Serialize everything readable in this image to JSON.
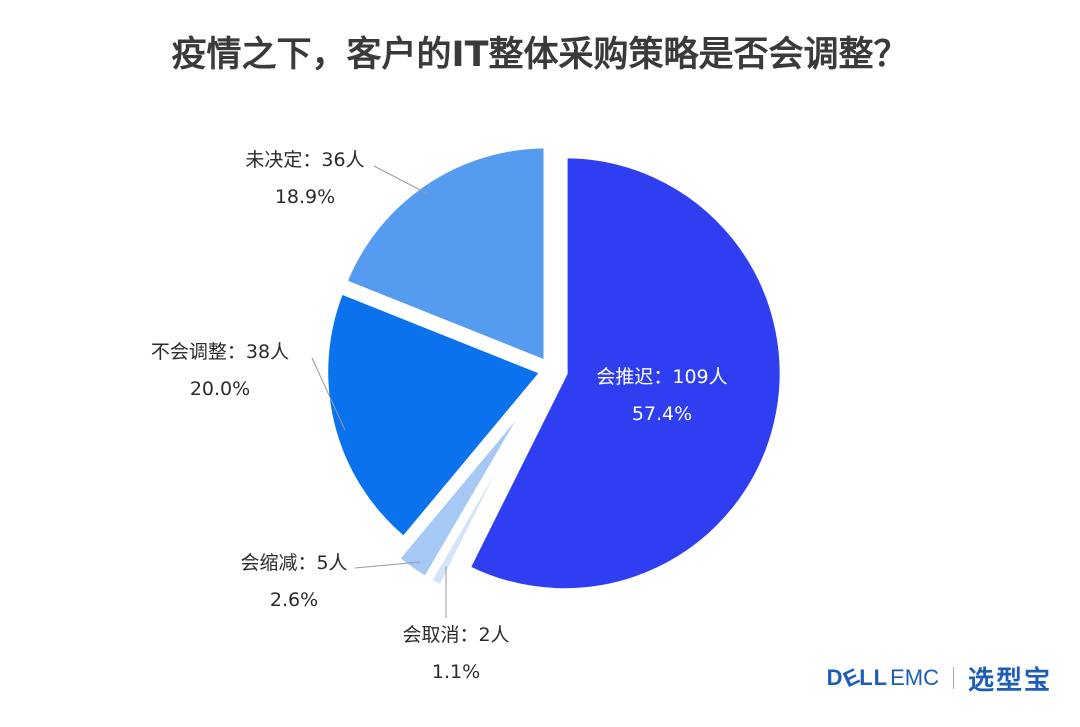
{
  "title": "疫情之下，客户的IT整体采购策略是否会调整？",
  "chart_data": {
    "type": "pie",
    "title": "疫情之下，客户的IT整体采购策略是否会调整？",
    "slices": [
      {
        "label": "会推迟",
        "count_text": "109人",
        "value": 109,
        "percent": "57.4%",
        "color": "#2e3ef0"
      },
      {
        "label": "会取消",
        "count_text": "2人",
        "value": 2,
        "percent": "1.1%",
        "color": "#d4e5fb"
      },
      {
        "label": "会缩减",
        "count_text": "5人",
        "value": 5,
        "percent": "2.6%",
        "color": "#a6c8f5"
      },
      {
        "label": "不会调整",
        "count_text": "38人",
        "value": 38,
        "percent": "20.0%",
        "color": "#0a72ec"
      },
      {
        "label": "未决定",
        "count_text": "36人",
        "value": 36,
        "percent": "18.9%",
        "color": "#559cf0"
      }
    ],
    "separator": "："
  },
  "footer": {
    "brand_a": "D",
    "brand_e": "E",
    "brand_b": "LL",
    "brand_c": "EMC",
    "partner": "选型宝"
  },
  "colors": {
    "title": "#3a3a3a",
    "leader": "#999999",
    "brand": "#1d5db6"
  }
}
